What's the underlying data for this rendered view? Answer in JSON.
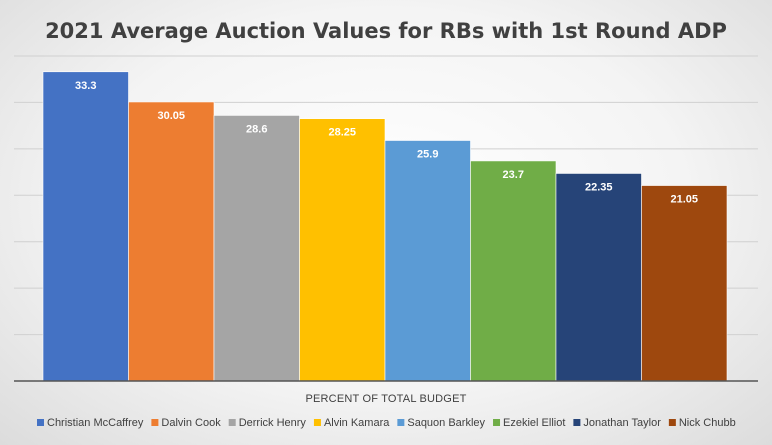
{
  "chart_data": {
    "type": "bar",
    "title": "2021 Average Auction Values for RBs with 1st Round ADP",
    "xlabel": "PERCENT OF TOTAL BUDGET",
    "ylabel": "",
    "ylim": [
      0,
      35
    ],
    "grid": true,
    "legend_position": "bottom",
    "series": [
      {
        "name": "Christian McCaffrey",
        "value": 33.3,
        "label": "33.3",
        "color": "#4472C4"
      },
      {
        "name": "Dalvin Cook",
        "value": 30.05,
        "label": "30.05",
        "color": "#ED7D31"
      },
      {
        "name": "Derrick Henry",
        "value": 28.6,
        "label": "28.6",
        "color": "#A5A5A5"
      },
      {
        "name": "Alvin Kamara",
        "value": 28.25,
        "label": "28.25",
        "color": "#FFC000"
      },
      {
        "name": "Saquon Barkley",
        "value": 25.9,
        "label": "25.9",
        "color": "#5B9BD5"
      },
      {
        "name": "Ezekiel Elliot",
        "value": 23.7,
        "label": "23.7",
        "color": "#70AD47"
      },
      {
        "name": "Jonathan Taylor",
        "value": 22.35,
        "label": "22.35",
        "color": "#264478"
      },
      {
        "name": "Nick Chubb",
        "value": 21.05,
        "label": "21.05",
        "color": "#9E480E"
      }
    ]
  }
}
